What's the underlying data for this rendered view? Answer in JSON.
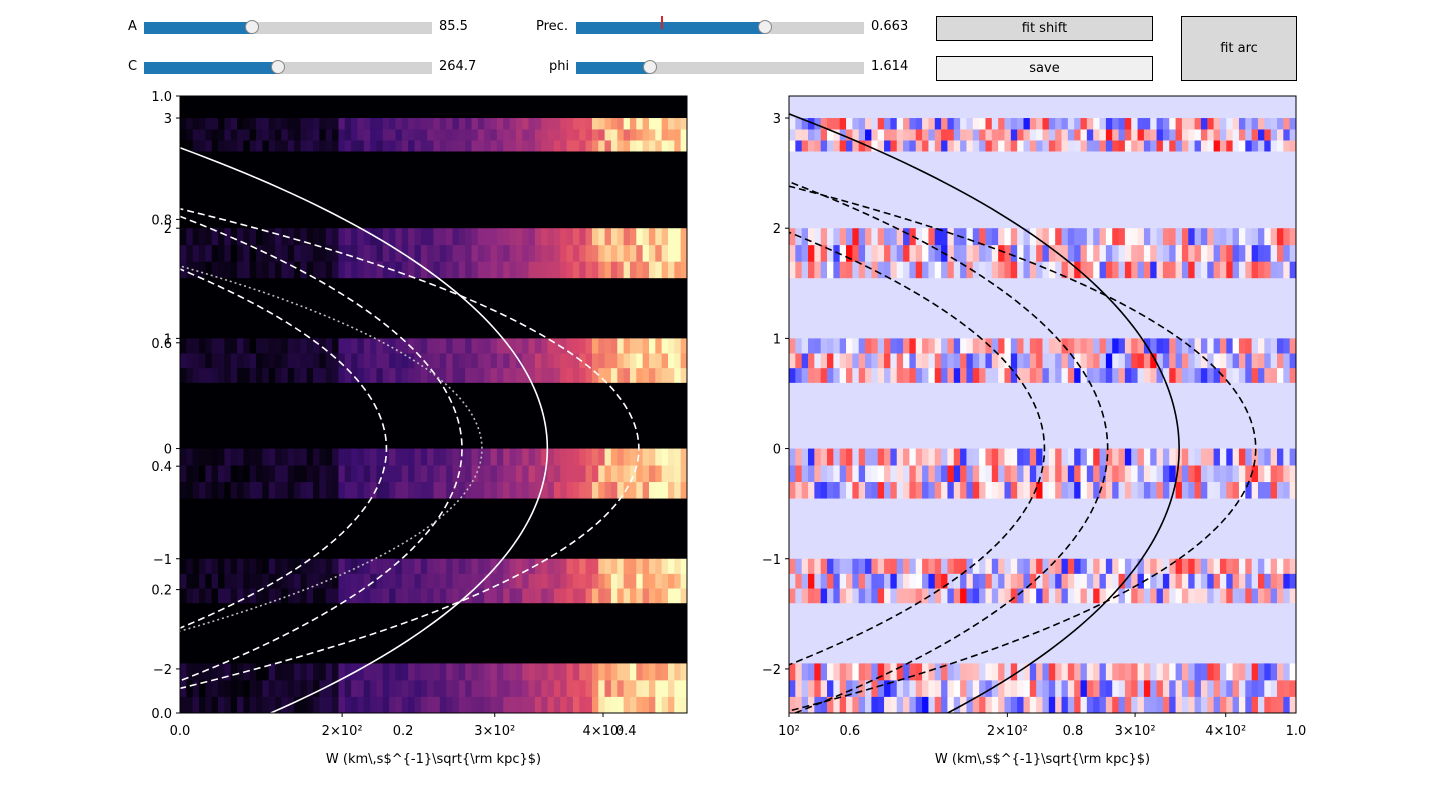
{
  "controls": {
    "sliders": [
      {
        "label": "A",
        "value_text": "85.5",
        "fraction": 0.38
      },
      {
        "label": "C",
        "value_text": "264.7",
        "fraction": 0.47
      },
      {
        "label": "Prec.",
        "value_text": "0.663",
        "fraction": 0.66,
        "valinit_fraction": 0.3
      },
      {
        "label": "phi",
        "value_text": "1.614",
        "fraction": 0.26
      }
    ],
    "buttons": {
      "fit_shift": "fit shift",
      "save": "save",
      "fit_arc": "fit arc"
    }
  },
  "chart_data": [
    {
      "type": "heatmap",
      "colormap": "magma",
      "xlabel": "W (km\\,s$^{-1}\\sqrt{\\rm kpc}$)",
      "xscale": "log",
      "xlim": [
        130,
        500
      ],
      "xticks": [
        "2×10²",
        "3×10²",
        "4×10²"
      ],
      "ylim": [
        -2.4,
        3.2
      ],
      "yticks": [
        "3",
        "2",
        "1",
        "0",
        "−1",
        "−2"
      ],
      "twin_ticks": [
        "1.0",
        "0.8",
        "0.6",
        "0.4",
        "0.2",
        "0.0"
      ],
      "twin_xticks": [
        "0.0",
        "0.2",
        "0.4"
      ],
      "curves": [
        {
          "style": "solid",
          "color": "#ffffff",
          "x_at_zero": 345
        },
        {
          "style": "dashed",
          "color": "#ffffff",
          "x_at_zero": 275
        },
        {
          "style": "dashed",
          "color": "#ffffff",
          "x_at_zero": 225
        },
        {
          "style": "dashed",
          "color": "#ffffff",
          "x_at_zero": 440
        },
        {
          "style": "dotted",
          "color": "#bbbbbb",
          "x_at_zero": 290
        }
      ]
    },
    {
      "type": "heatmap",
      "colormap": "bwr",
      "xlabel": "W (km\\,s$^{-1}\\sqrt{\\rm kpc}$)",
      "xscale": "log",
      "xlim": [
        100,
        500
      ],
      "xticks": [
        "10²",
        "2×10²",
        "3×10²",
        "4×10²"
      ],
      "ylim": [
        -2.4,
        3.2
      ],
      "yticks": [
        "3",
        "2",
        "1",
        "0",
        "−1",
        "−2"
      ],
      "twin_xticks": [
        "0.6",
        "0.8",
        "1.0"
      ],
      "curves": [
        {
          "style": "solid",
          "color": "#000000",
          "x_at_zero": 345
        },
        {
          "style": "dashed",
          "color": "#000000",
          "x_at_zero": 275
        },
        {
          "style": "dashed",
          "color": "#000000",
          "x_at_zero": 225
        },
        {
          "style": "dashed",
          "color": "#000000",
          "x_at_zero": 440
        }
      ]
    }
  ]
}
